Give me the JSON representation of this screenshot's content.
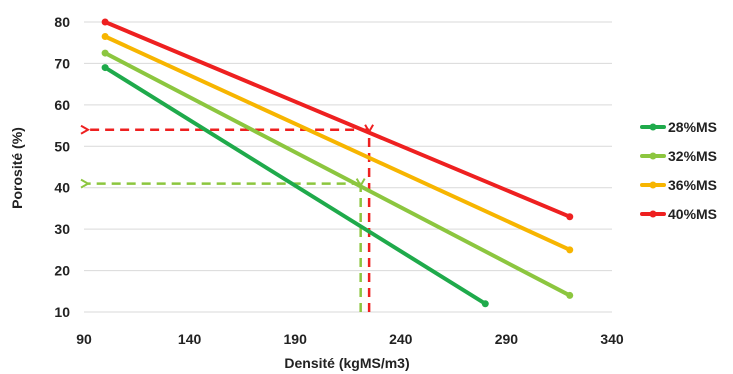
{
  "chart_data": {
    "type": "line",
    "title": "",
    "xlabel": "Densité (kgMS/m3)",
    "ylabel": "Porosité (%)",
    "xlim": [
      90,
      340
    ],
    "ylim": [
      10,
      80
    ],
    "xticks": [
      "90",
      "140",
      "190",
      "240",
      "290",
      "340"
    ],
    "yticks": [
      "10",
      "20",
      "30",
      "40",
      "50",
      "60",
      "70",
      "80"
    ],
    "grid": "horizontal",
    "legend_position": "right",
    "series": [
      {
        "name": "28%MS",
        "color": "#1faa4b",
        "points": [
          [
            100,
            69
          ],
          [
            280,
            12
          ]
        ]
      },
      {
        "name": "32%MS",
        "color": "#8cc63f",
        "points": [
          [
            100,
            72.5
          ],
          [
            320,
            14
          ]
        ]
      },
      {
        "name": "36%MS",
        "color": "#f7b500",
        "points": [
          [
            100,
            76.5
          ],
          [
            320,
            25
          ]
        ]
      },
      {
        "name": "40%MS",
        "color": "#ee2020",
        "points": [
          [
            100,
            80
          ],
          [
            320,
            33
          ]
        ]
      }
    ],
    "annotations": [
      {
        "type": "dashed-arrow-path",
        "color": "#ee2020",
        "x_value": 225,
        "y_value": 54,
        "series": "40%MS"
      },
      {
        "type": "dashed-arrow-path",
        "color": "#8cc63f",
        "x_value": 221,
        "y_value": 41,
        "series": "32%MS"
      }
    ]
  }
}
